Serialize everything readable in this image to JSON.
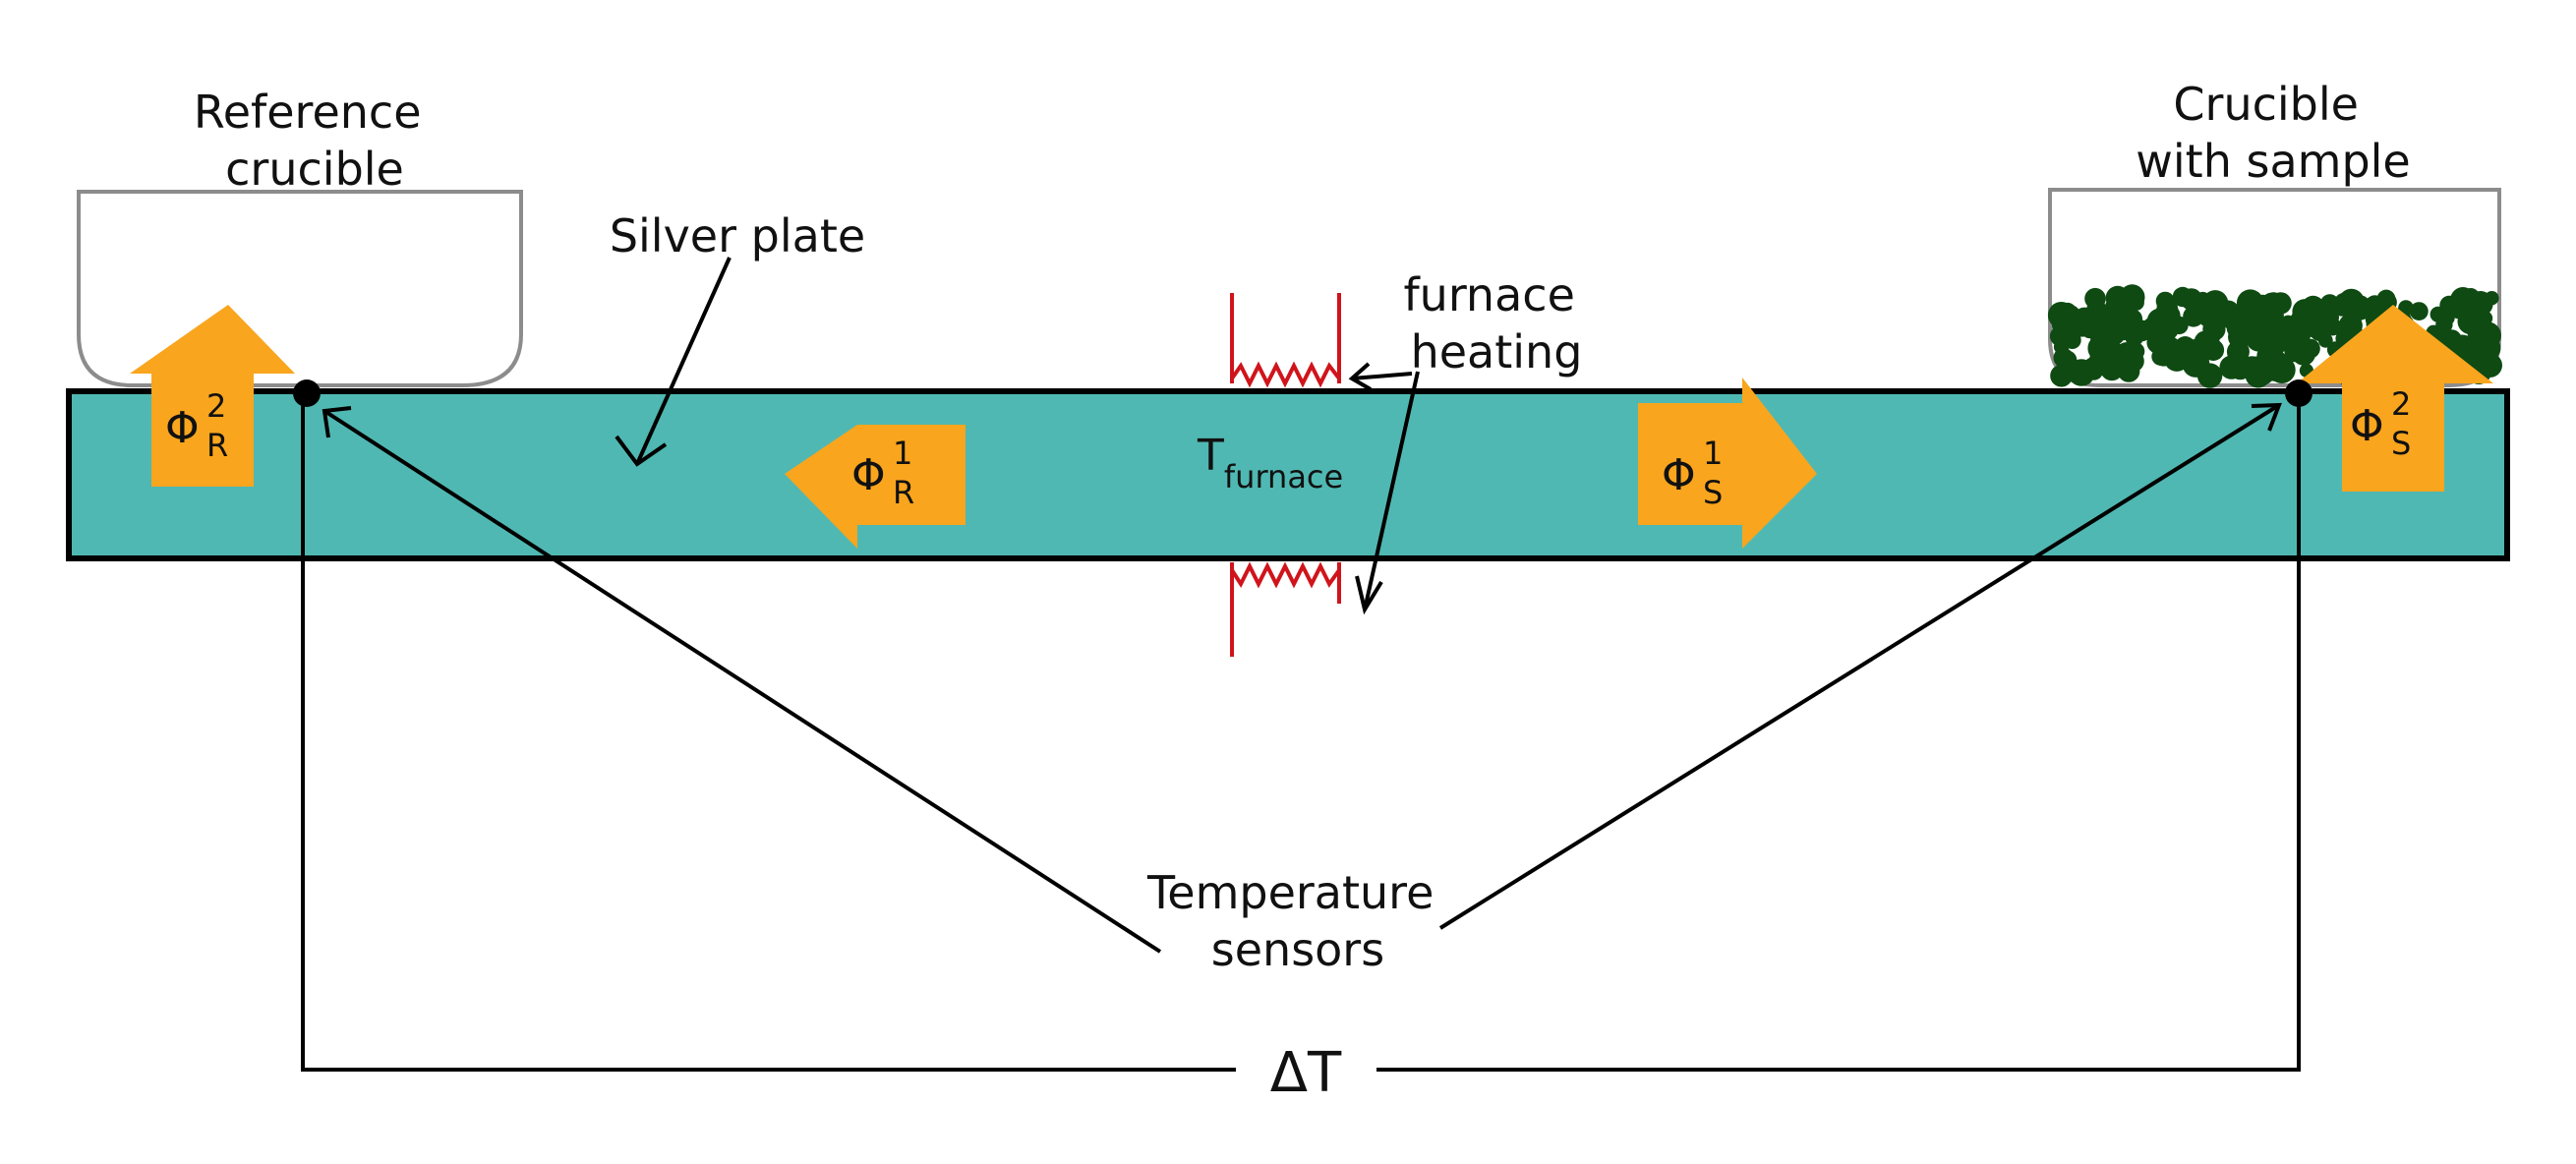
{
  "labels": {
    "reference_crucible": [
      "Reference",
      "crucible"
    ],
    "sample_crucible": [
      "Crucible",
      "with sample"
    ],
    "silver_plate": "Silver plate",
    "furnace_heating": [
      "furnace",
      "heating"
    ],
    "t_furnace": {
      "base": "T",
      "sub": "furnace"
    },
    "temperature_sensors": [
      "Temperature",
      "sensors"
    ],
    "delta_t": "ΔT"
  },
  "fluxes": {
    "phi_r2": {
      "base": "Φ",
      "sup": "2",
      "sub": "R"
    },
    "phi_r1": {
      "base": "Φ",
      "sup": "1",
      "sub": "R"
    },
    "phi_s1": {
      "base": "Φ",
      "sup": "1",
      "sub": "S"
    },
    "phi_s2": {
      "base": "Φ",
      "sup": "2",
      "sub": "S"
    }
  },
  "colors": {
    "plate_fill": "#50B8B2",
    "flux_arrow": "#F9A51E",
    "heater": "#D0141B",
    "crucible_outline": "#8C8C8C",
    "sample": "#0E4A12",
    "line": "#000000"
  }
}
